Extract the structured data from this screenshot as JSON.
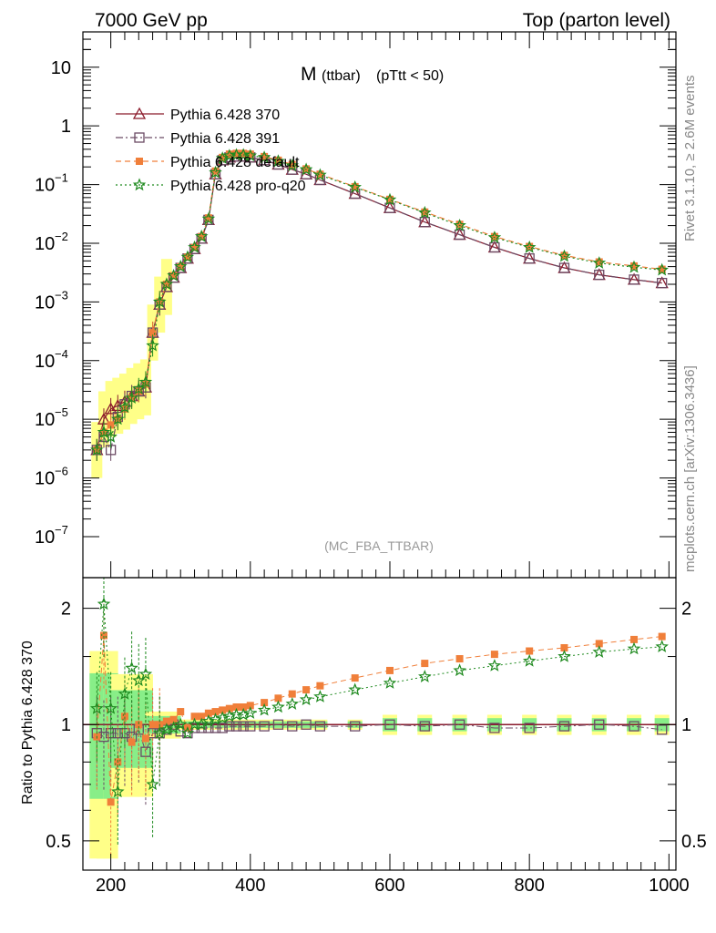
{
  "header": {
    "left": "7000 GeV pp",
    "right": "Top (parton level)"
  },
  "plot_title": {
    "main": "M",
    "sub": "(ttbar)",
    "cut": "(pTtt < 50)"
  },
  "side_text": {
    "rivet": "Rivet 3.1.10, ≥ 2.6M events",
    "site": "mcplots.cern.ch [arXiv:1306.3436]"
  },
  "annotation": "(MC_FBA_TTBAR)",
  "ratio_ylabel": "Ratio to Pythia 6.428 370",
  "colors": {
    "p370": "#8b1a2b",
    "p391": "#6b4a64",
    "pdefault": "#f07f3a",
    "pq20": "#1f8a1f",
    "band_yellow": "#ffff88",
    "band_green": "#88ee88"
  },
  "chart_data": [
    {
      "type": "line",
      "role": "main",
      "x": [
        180,
        190,
        200,
        210,
        220,
        230,
        240,
        250,
        260,
        270,
        280,
        290,
        300,
        310,
        320,
        330,
        340,
        350,
        360,
        370,
        380,
        390,
        400,
        420,
        440,
        460,
        480,
        500,
        550,
        600,
        650,
        700,
        750,
        800,
        850,
        900,
        950,
        990
      ],
      "series": [
        {
          "name": "Pythia 6.428 370",
          "marker": "triangle-open",
          "values": [
            3e-06,
            1e-05,
            1.5e-05,
            1.7e-05,
            2e-05,
            2.5e-05,
            3e-05,
            3.5e-05,
            0.0003,
            0.0009,
            0.0018,
            0.0026,
            0.0038,
            0.0055,
            0.008,
            0.012,
            0.025,
            0.15,
            0.26,
            0.29,
            0.3,
            0.3,
            0.29,
            0.26,
            0.22,
            0.18,
            0.15,
            0.12,
            0.07,
            0.04,
            0.023,
            0.014,
            0.0085,
            0.0055,
            0.0038,
            0.0029,
            0.0024,
            0.0021
          ]
        },
        {
          "name": "Pythia 6.428 391",
          "marker": "square-open",
          "values": [
            3e-06,
            5e-06,
            3e-06,
            1.1e-05,
            1.8e-05,
            2.5e-05,
            3e-05,
            3.5e-05,
            0.0003,
            0.0009,
            0.0018,
            0.0026,
            0.0038,
            0.0055,
            0.008,
            0.012,
            0.025,
            0.15,
            0.26,
            0.29,
            0.3,
            0.3,
            0.29,
            0.26,
            0.22,
            0.18,
            0.15,
            0.12,
            0.07,
            0.04,
            0.023,
            0.014,
            0.0085,
            0.0055,
            0.0038,
            0.0029,
            0.0024,
            0.0021
          ]
        },
        {
          "name": "Pythia 6.428 default",
          "marker": "square-filled",
          "values": [
            3e-06,
            6e-06,
            8e-06,
            1e-05,
            1.5e-05,
            2.3e-05,
            3e-05,
            4e-05,
            0.0003,
            0.001,
            0.002,
            0.0028,
            0.004,
            0.0058,
            0.0085,
            0.013,
            0.027,
            0.17,
            0.29,
            0.33,
            0.34,
            0.34,
            0.33,
            0.3,
            0.26,
            0.22,
            0.185,
            0.15,
            0.092,
            0.056,
            0.034,
            0.021,
            0.013,
            0.0088,
            0.0062,
            0.0048,
            0.0041,
            0.0036
          ]
        },
        {
          "name": "Pythia 6.428 pro-q20",
          "marker": "star",
          "values": [
            3e-06,
            6e-06,
            5e-06,
            1e-05,
            1.6e-05,
            2.3e-05,
            3.3e-05,
            4.3e-05,
            0.00018,
            0.001,
            0.002,
            0.0028,
            0.004,
            0.0058,
            0.0085,
            0.013,
            0.026,
            0.16,
            0.28,
            0.31,
            0.32,
            0.32,
            0.31,
            0.29,
            0.25,
            0.21,
            0.18,
            0.145,
            0.09,
            0.055,
            0.033,
            0.02,
            0.0125,
            0.0085,
            0.006,
            0.0046,
            0.0039,
            0.0035
          ]
        }
      ],
      "xlim": [
        160,
        1010
      ],
      "ylim": [
        2e-08,
        40
      ],
      "yscale": "log",
      "y_tick_labels": [
        "10",
        "1",
        "10^-1",
        "10^-2",
        "10^-3",
        "10^-4",
        "10^-5",
        "10^-6",
        "10^-7"
      ],
      "legend_position": "top-left"
    },
    {
      "type": "line",
      "role": "ratio",
      "x": [
        180,
        190,
        200,
        210,
        220,
        230,
        240,
        250,
        260,
        270,
        280,
        290,
        300,
        310,
        320,
        330,
        340,
        350,
        360,
        370,
        380,
        390,
        400,
        420,
        440,
        460,
        480,
        500,
        550,
        600,
        650,
        700,
        750,
        800,
        850,
        900,
        950,
        990
      ],
      "series": [
        {
          "name": "Pythia 6.428 391",
          "values": [
            0.95,
            0.93,
            0.95,
            0.95,
            0.95,
            0.93,
            0.97,
            0.85,
            0.95,
            0.95,
            0.97,
            1.0,
            0.96,
            0.95,
            0.98,
            0.98,
            0.98,
            0.98,
            0.98,
            0.99,
            0.99,
            0.99,
            0.99,
            0.99,
            1.0,
            0.99,
            1.0,
            0.99,
            0.99,
            1.0,
            0.99,
            1.0,
            0.98,
            0.98,
            0.99,
            1.0,
            0.99,
            0.97
          ]
        },
        {
          "name": "Pythia 6.428 default",
          "values": [
            0.93,
            1.7,
            0.63,
            0.8,
            1.05,
            0.9,
            1.0,
            0.92,
            1.0,
            1.0,
            1.02,
            1.03,
            1.08,
            0.98,
            1.05,
            1.05,
            1.07,
            1.08,
            1.09,
            1.1,
            1.11,
            1.11,
            1.12,
            1.14,
            1.17,
            1.2,
            1.23,
            1.26,
            1.32,
            1.38,
            1.44,
            1.48,
            1.52,
            1.55,
            1.58,
            1.62,
            1.66,
            1.69
          ]
        },
        {
          "name": "Pythia 6.428 pro-q20",
          "values": [
            1.1,
            2.05,
            1.1,
            0.67,
            1.2,
            1.4,
            1.3,
            1.35,
            0.7,
            0.95,
            0.97,
            0.98,
            1.0,
            0.95,
            1.0,
            1.0,
            1.02,
            1.03,
            1.04,
            1.05,
            1.06,
            1.06,
            1.07,
            1.09,
            1.11,
            1.13,
            1.16,
            1.18,
            1.23,
            1.28,
            1.33,
            1.38,
            1.42,
            1.46,
            1.5,
            1.54,
            1.57,
            1.59
          ]
        }
      ],
      "xlim": [
        160,
        1010
      ],
      "ylim": [
        0.42,
        2.4
      ],
      "yscale": "log",
      "x_tick_labels": [
        "200",
        "400",
        "600",
        "800",
        "1000"
      ],
      "y_tick_labels": [
        "0.5",
        "1",
        "2"
      ]
    }
  ]
}
